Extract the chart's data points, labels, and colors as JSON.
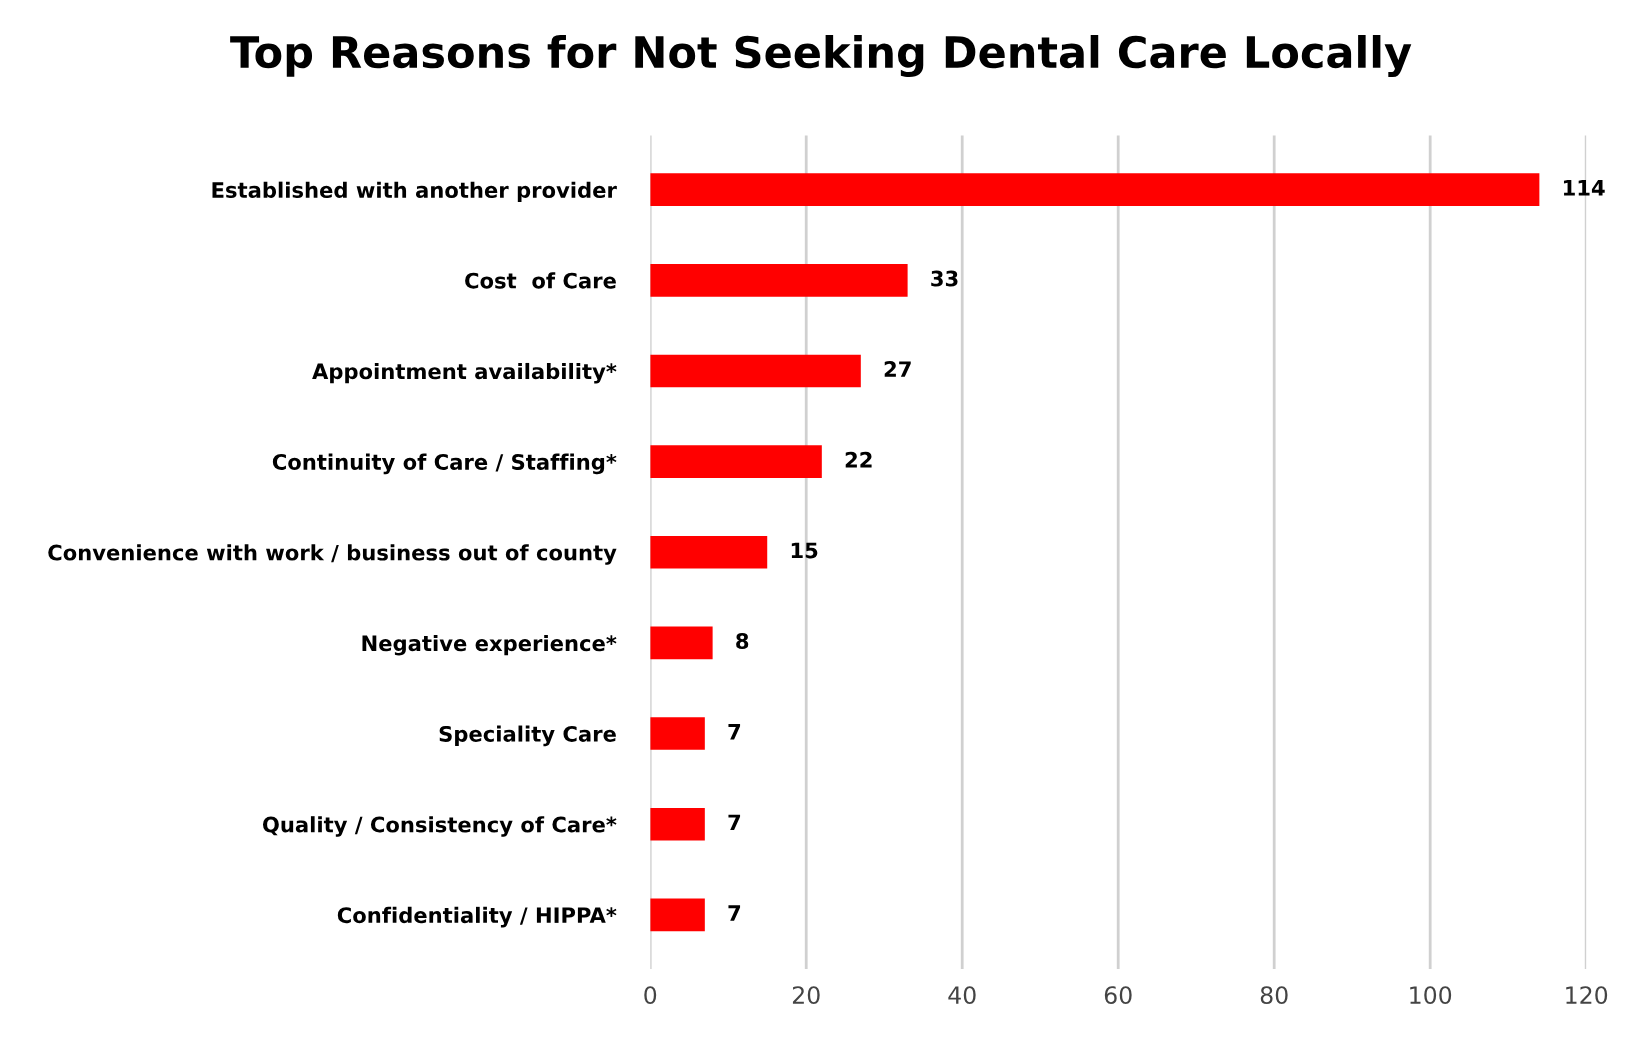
{
  "chart_data": {
    "type": "bar",
    "orientation": "horizontal",
    "title": "Top Reasons for Not Seeking Dental Care Locally",
    "categories": [
      "Established with another provider",
      "Cost  of Care",
      "Appointment availability*",
      "Continuity of Care / Staffing*",
      "Convenience with work / business out of county",
      "Negative experience*",
      "Speciality Care",
      "Quality / Consistency of Care*",
      "Confidentiality / HIPPA*"
    ],
    "values": [
      114,
      33,
      27,
      22,
      15,
      8,
      7,
      7,
      7
    ],
    "color": "#ff0000",
    "xlim": [
      0,
      120
    ],
    "xticks": [
      0,
      20,
      40,
      60,
      80,
      100,
      120
    ],
    "grid": "x",
    "data_labels": true,
    "legend": false
  }
}
